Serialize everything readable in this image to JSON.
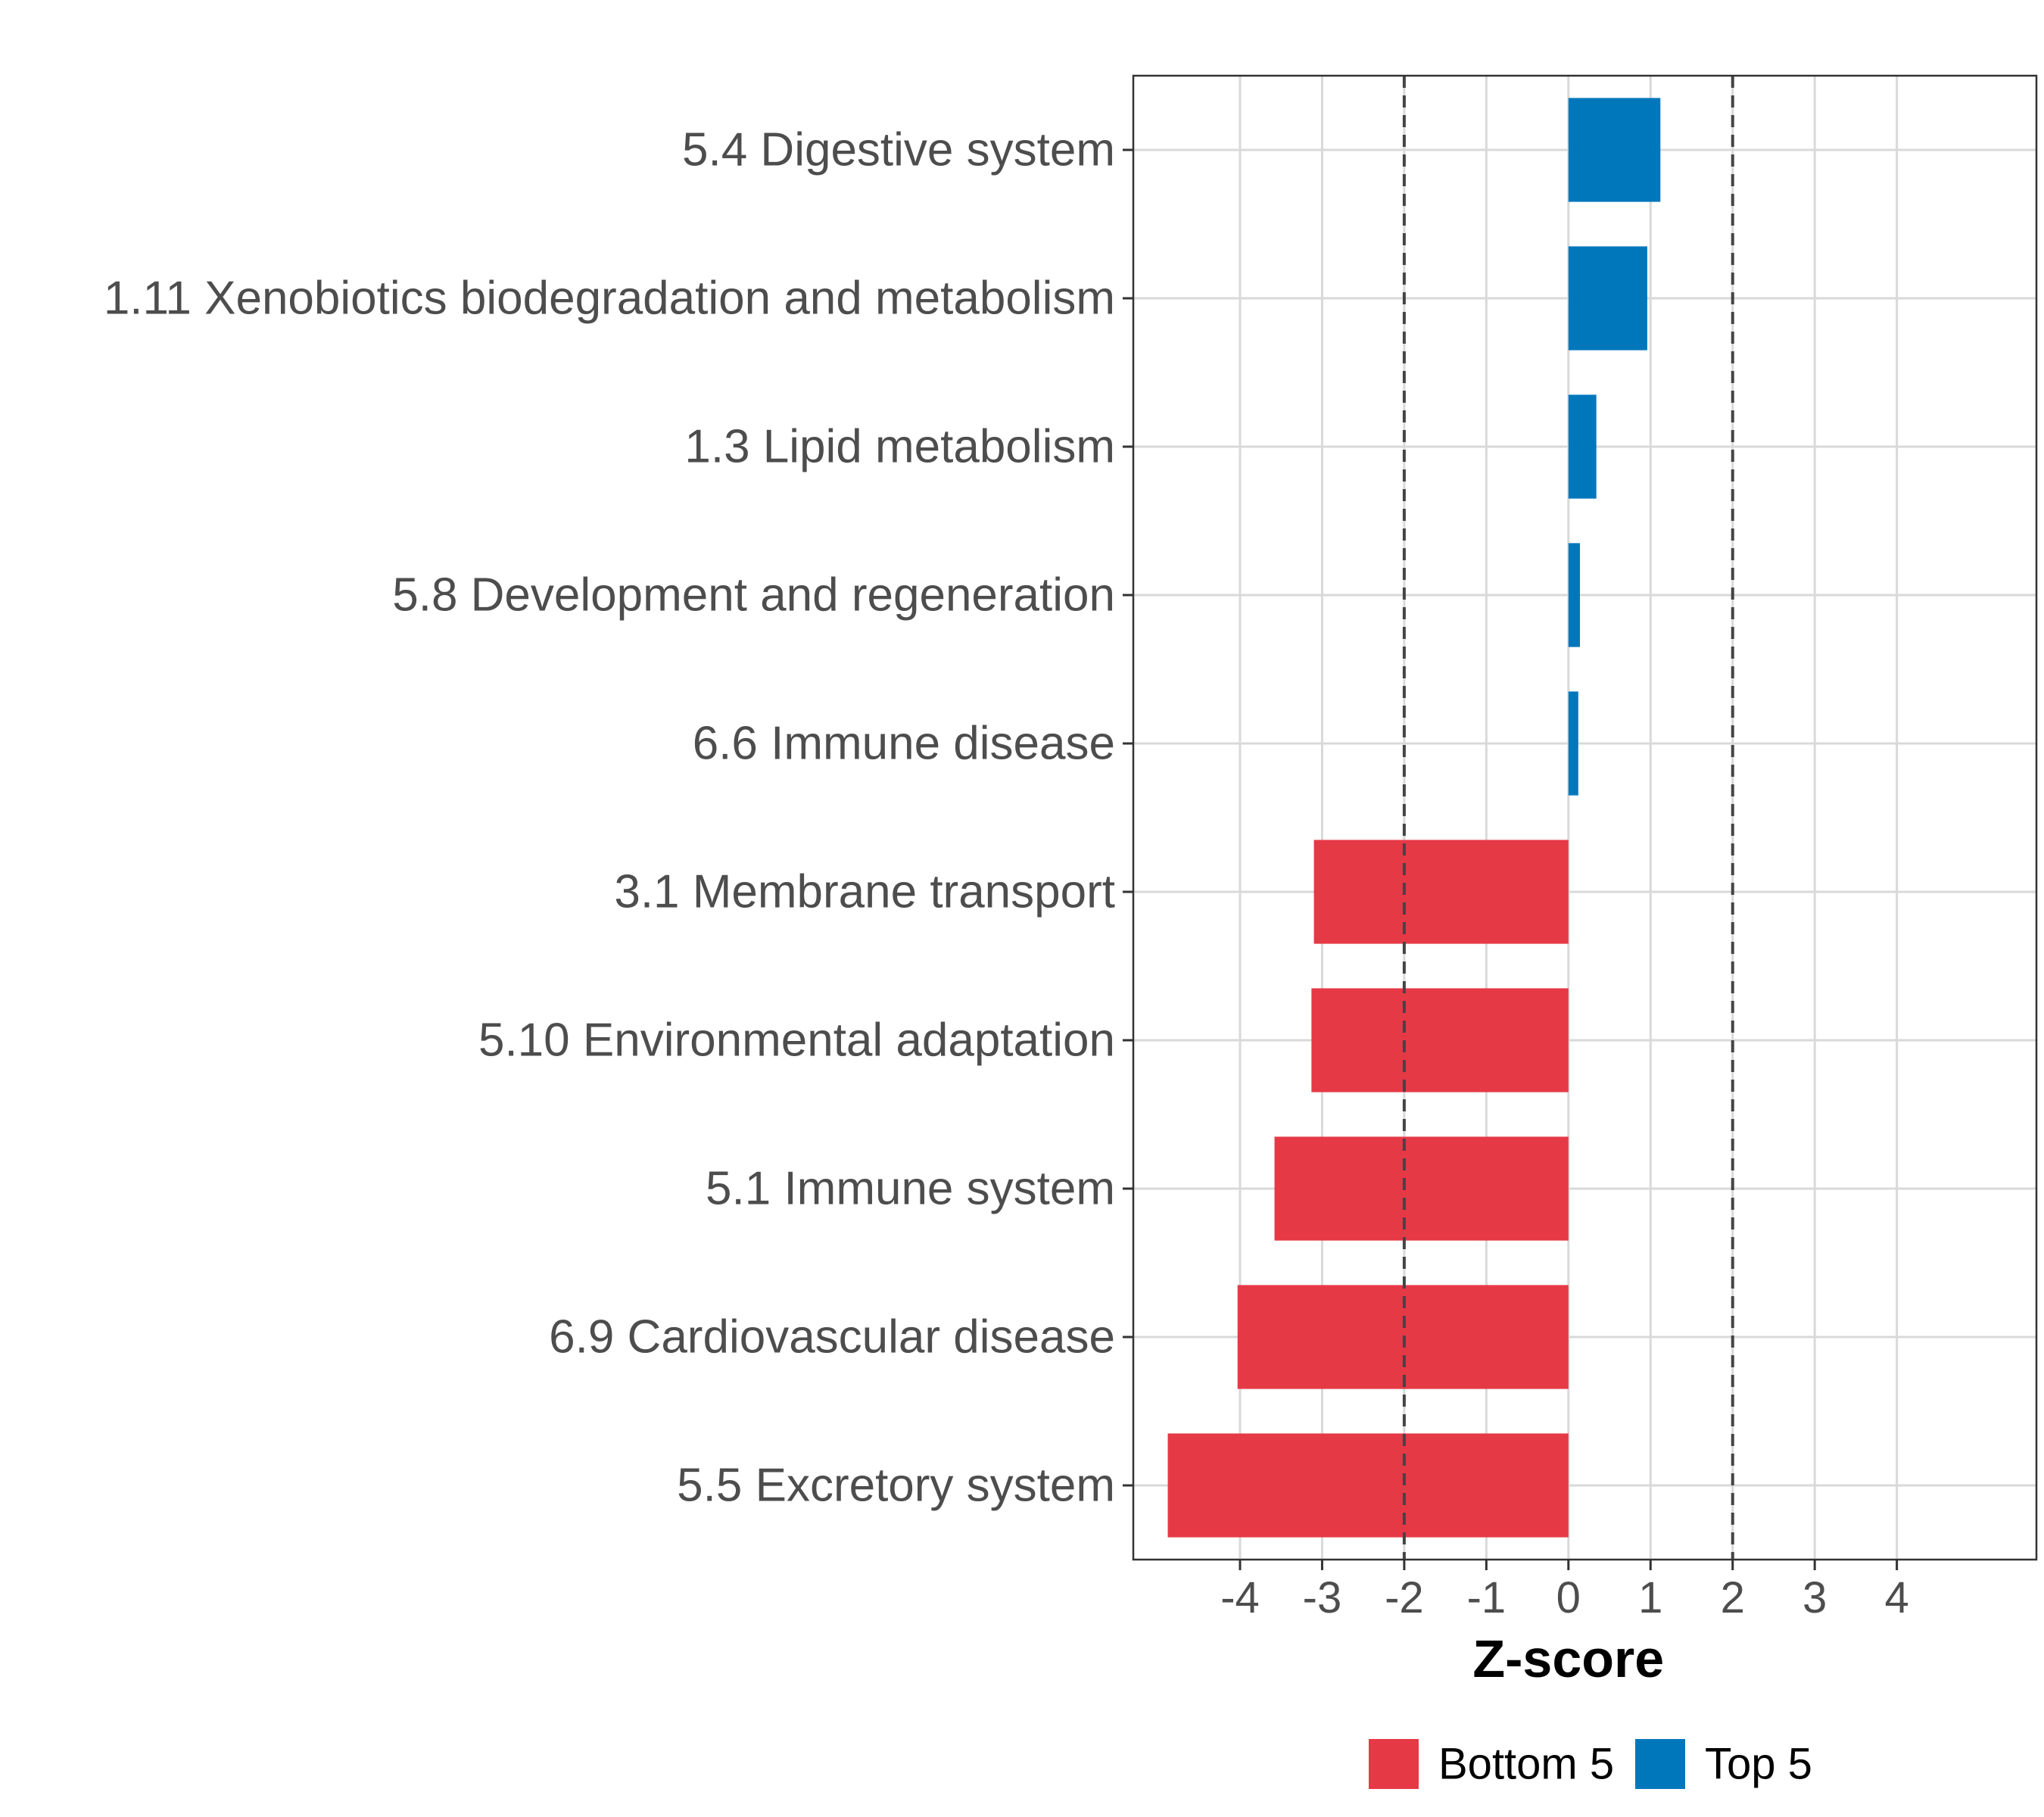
{
  "chart_data": {
    "type": "bar",
    "orientation": "horizontal",
    "title": "",
    "xlabel": "Z-score",
    "ylabel": "",
    "xlim": [
      -5.3,
      5.7
    ],
    "xticks": [
      "-4",
      "-3",
      "-2",
      "-1",
      "0",
      "1",
      "2",
      "3",
      "4"
    ],
    "reference_lines": [
      -2,
      2
    ],
    "grid": true,
    "bars": [
      {
        "label": "5.4 Digestive system",
        "value": 1.12,
        "group": "Top 5"
      },
      {
        "label": "1.11 Xenobiotics biodegradation and metabolism",
        "value": 0.96,
        "group": "Top 5"
      },
      {
        "label": "1.3 Lipid metabolism",
        "value": 0.34,
        "group": "Top 5"
      },
      {
        "label": "5.8 Development and regeneration",
        "value": 0.14,
        "group": "Top 5"
      },
      {
        "label": "6.6 Immune disease",
        "value": 0.12,
        "group": "Top 5"
      },
      {
        "label": "3.1 Membrane transport",
        "value": -3.1,
        "group": "Bottom 5"
      },
      {
        "label": "5.10 Environmental adaptation",
        "value": -3.13,
        "group": "Bottom 5"
      },
      {
        "label": "5.1 Immune system",
        "value": -3.58,
        "group": "Bottom 5"
      },
      {
        "label": "6.9 Cardiovascular disease",
        "value": -4.03,
        "group": "Bottom 5"
      },
      {
        "label": "5.5 Excretory system",
        "value": -4.88,
        "group": "Bottom 5"
      }
    ],
    "legend": [
      {
        "label": "Bottom 5",
        "color": "#e63946"
      },
      {
        "label": "Top 5",
        "color": "#0077bb"
      }
    ],
    "legend_position": "bottom"
  }
}
